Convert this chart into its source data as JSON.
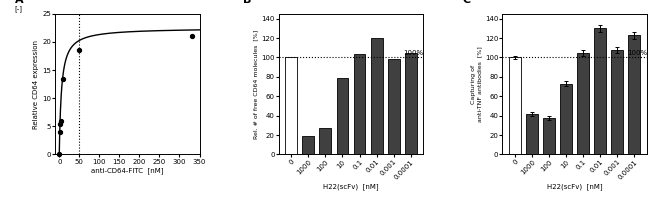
{
  "panel_A": {
    "label": "A",
    "xlabel": "anti-CD64-FITC  [nM]",
    "ylabel_top": "[-]",
    "ylabel_main": "Relative CD64 expression",
    "xlim": [
      -10,
      350
    ],
    "ylim": [
      0,
      25
    ],
    "xticks": [
      0,
      50,
      100,
      150,
      200,
      250,
      300,
      350
    ],
    "yticks": [
      0,
      5,
      10,
      15,
      20,
      25
    ],
    "scatter_x": [
      0,
      1,
      2,
      5,
      10,
      50,
      330
    ],
    "scatter_y": [
      0,
      4.0,
      5.5,
      6.0,
      13.5,
      18.5,
      21.0
    ],
    "vline_x": 50,
    "curve_Bmax": 22.5,
    "curve_Kd": 5.5
  },
  "panel_B": {
    "label": "B",
    "xlabel": "H22(scFv)  [nM]",
    "ylabel": "Rel. # of free CD64 molecules  [%]",
    "categories": [
      "0",
      "1000",
      "100",
      "10",
      "0.1",
      "0.01",
      "0.001",
      "0.0001"
    ],
    "values": [
      100,
      19,
      27,
      79,
      104,
      120,
      98,
      105
    ],
    "bar_colors": [
      "white",
      "#404040",
      "#404040",
      "#404040",
      "#404040",
      "#404040",
      "#404040",
      "#404040"
    ],
    "ylim": [
      0,
      145
    ],
    "yticks": [
      0,
      20,
      40,
      60,
      80,
      100,
      120,
      140
    ],
    "dashed_y": 100,
    "percent_label": "100%"
  },
  "panel_C": {
    "label": "C",
    "xlabel": "H22(scFv)  [nM]",
    "ylabel_top": "Capturing of",
    "ylabel_bot": "anti-TNF antibodies  [%]",
    "categories": [
      "0",
      "1000",
      "100",
      "10",
      "0.1",
      "0.01",
      "0.001",
      "0.0001"
    ],
    "values": [
      100,
      42,
      38,
      73,
      105,
      130,
      108,
      123
    ],
    "errors": [
      2.0,
      2.0,
      2.0,
      2.5,
      3.0,
      3.5,
      3.0,
      3.5
    ],
    "bar_colors": [
      "white",
      "#404040",
      "#404040",
      "#404040",
      "#404040",
      "#404040",
      "#404040",
      "#404040"
    ],
    "ylim": [
      0,
      145
    ],
    "yticks": [
      0,
      20,
      40,
      60,
      80,
      100,
      120,
      140
    ],
    "dashed_y": 100,
    "percent_label": "100%"
  },
  "background_color": "white",
  "bar_edge_color": "black"
}
